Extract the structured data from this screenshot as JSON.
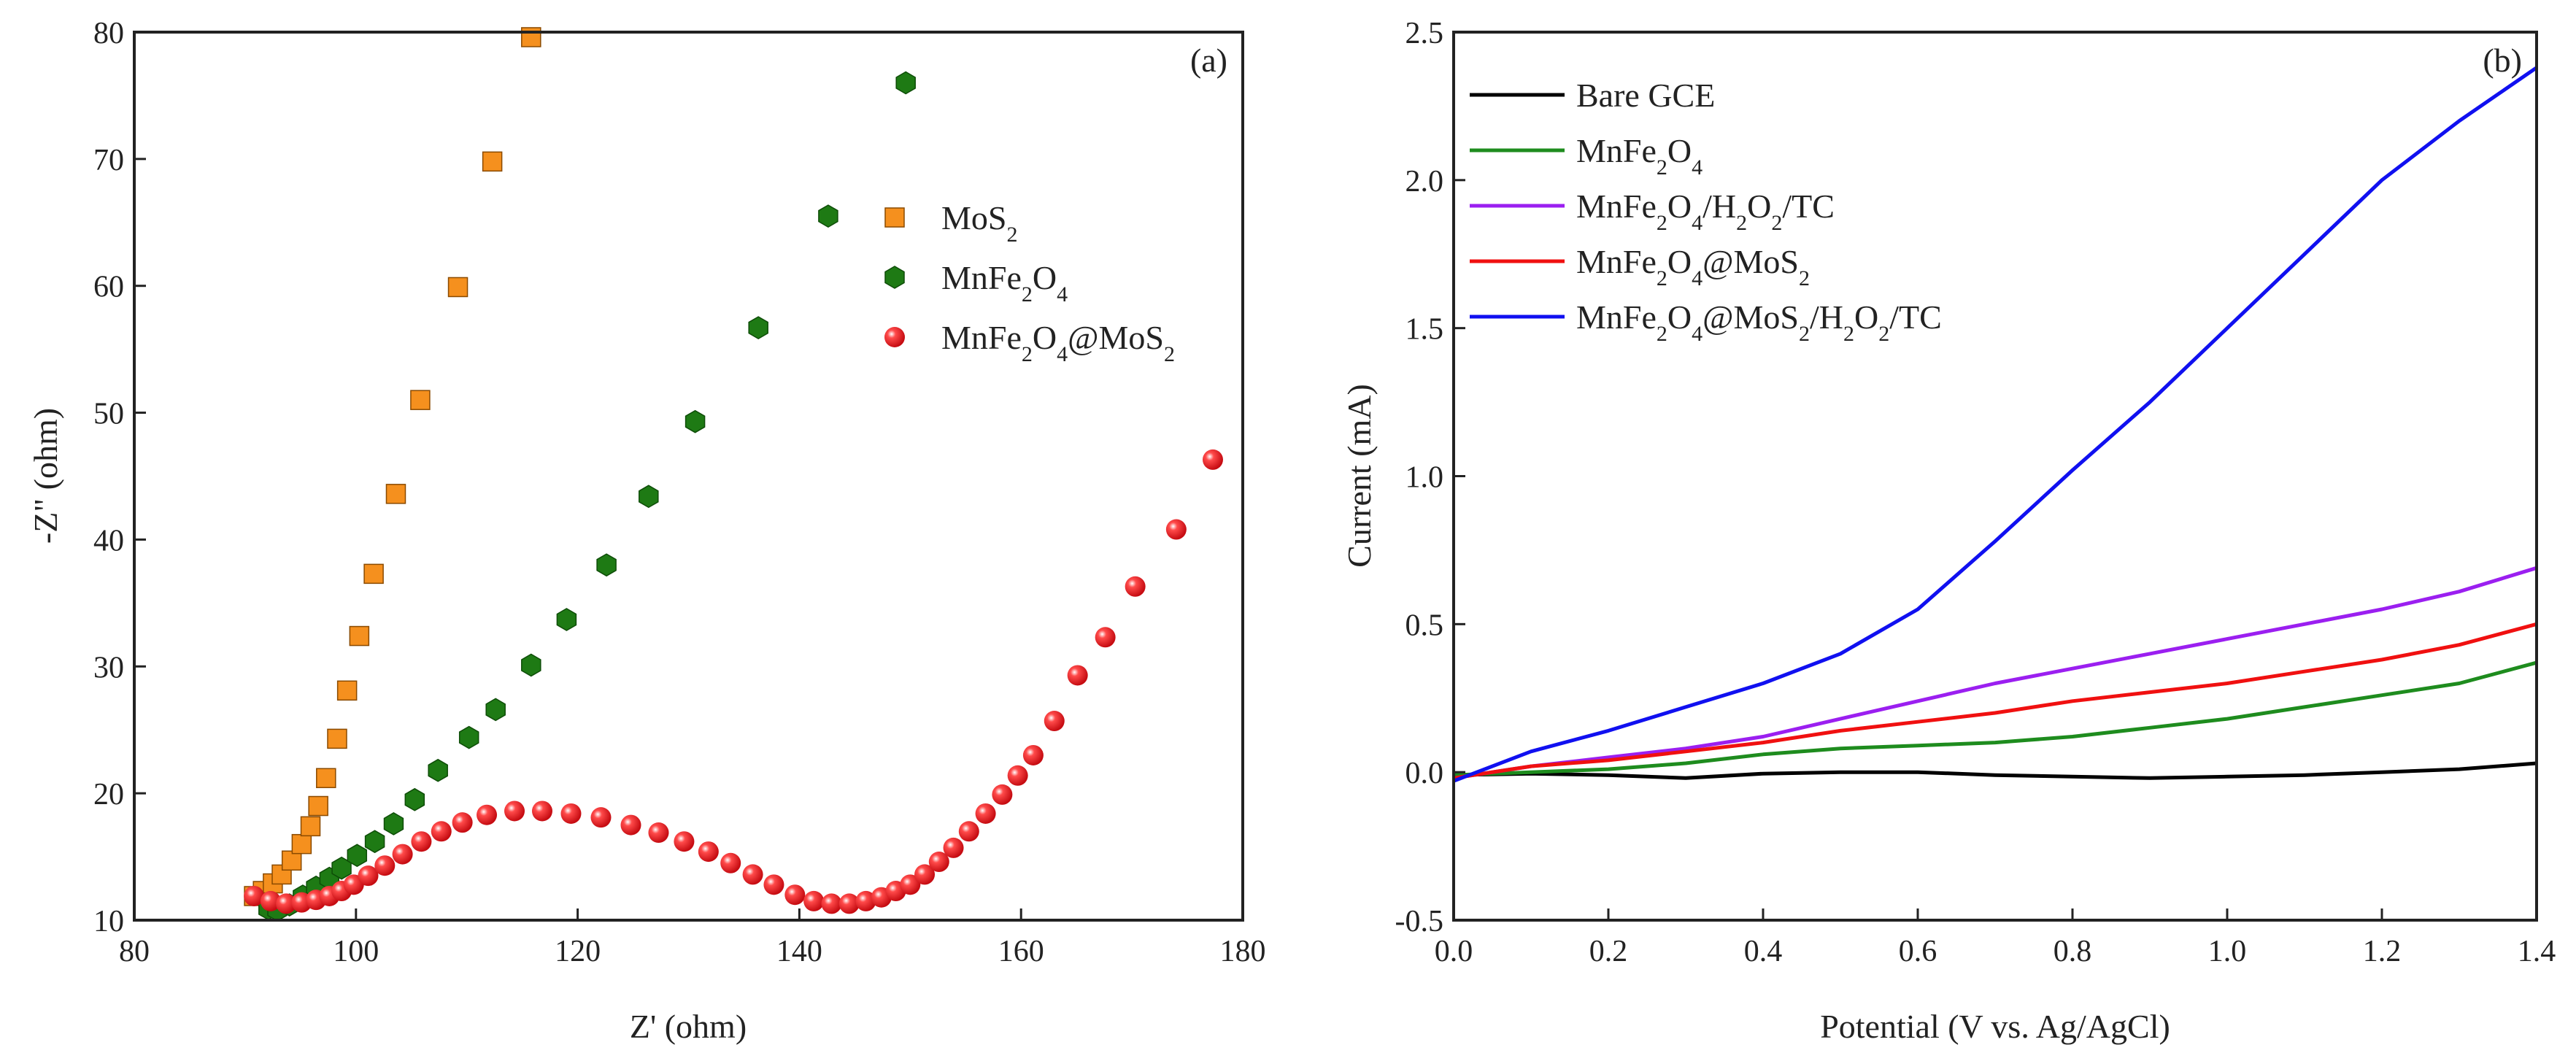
{
  "chart_data": [
    {
      "type": "scatter",
      "panel_label": "(a)",
      "xlabel": "Z' (ohm)",
      "ylabel": "-Z\" (ohm)",
      "xlim": [
        80,
        180
      ],
      "ylim": [
        10,
        80
      ],
      "xticks": [
        80,
        100,
        120,
        140,
        160,
        180
      ],
      "yticks": [
        10,
        20,
        30,
        40,
        50,
        60,
        70,
        80
      ],
      "legend_position": "right-middle",
      "series": [
        {
          "name": "MoS₂",
          "marker": "square",
          "color": "#F5901E",
          "x": [
            90.8,
            91.6,
            92.5,
            93.3,
            94.2,
            95.1,
            95.9,
            96.6,
            97.3,
            98.3,
            99.2,
            100.3,
            101.6,
            103.6,
            105.8,
            109.2,
            112.3,
            115.8
          ],
          "y": [
            11.9,
            12.3,
            12.9,
            13.6,
            14.7,
            16.0,
            17.4,
            19.0,
            21.2,
            24.3,
            28.1,
            32.4,
            37.3,
            43.6,
            51.0,
            59.9,
            69.8,
            79.6
          ]
        },
        {
          "name": "MnFe₂O₄",
          "marker": "hexagon",
          "color": "#1E7A14",
          "x": [
            92.1,
            92.9,
            94.0,
            95.2,
            96.4,
            97.6,
            98.7,
            100.1,
            101.7,
            103.4,
            105.3,
            107.4,
            110.2,
            112.6,
            115.8,
            119.0,
            122.6,
            126.4,
            130.6,
            136.3,
            142.6,
            149.6
          ],
          "y": [
            10.9,
            10.8,
            11.2,
            11.9,
            12.6,
            13.3,
            14.1,
            15.1,
            16.2,
            17.6,
            19.5,
            21.8,
            24.4,
            26.6,
            30.1,
            33.7,
            38.0,
            43.4,
            49.3,
            56.7,
            65.5,
            76.0
          ]
        },
        {
          "name": "MnFe₂O₄@MoS₂",
          "marker": "sphere",
          "color": "#E8141C",
          "x": [
            90.8,
            92.3,
            93.7,
            95.1,
            96.4,
            97.6,
            98.7,
            99.8,
            101.1,
            102.6,
            104.2,
            105.9,
            107.7,
            109.6,
            111.8,
            114.3,
            116.8,
            119.4,
            122.1,
            124.8,
            127.3,
            129.6,
            131.8,
            133.8,
            135.8,
            137.7,
            139.6,
            141.3,
            142.9,
            144.5,
            146.0,
            147.4,
            148.7,
            150.0,
            151.3,
            152.6,
            153.9,
            155.3,
            156.8,
            158.3,
            159.7,
            161.1,
            163.0,
            165.1,
            167.6,
            170.3,
            174.0,
            177.3
          ],
          "y": [
            11.9,
            11.5,
            11.3,
            11.4,
            11.6,
            11.9,
            12.3,
            12.8,
            13.5,
            14.3,
            15.2,
            16.2,
            17.0,
            17.7,
            18.3,
            18.6,
            18.6,
            18.4,
            18.1,
            17.5,
            16.9,
            16.2,
            15.4,
            14.5,
            13.6,
            12.8,
            12.0,
            11.5,
            11.3,
            11.3,
            11.5,
            11.8,
            12.3,
            12.8,
            13.6,
            14.6,
            15.7,
            17.0,
            18.4,
            19.9,
            21.4,
            23.0,
            25.7,
            29.3,
            32.3,
            36.3,
            40.8,
            46.3
          ]
        }
      ]
    },
    {
      "type": "line",
      "panel_label": "(b)",
      "xlabel": "Potential (V vs. Ag/AgCl)",
      "ylabel": "Current (mA)",
      "xlim": [
        0.0,
        1.4
      ],
      "ylim": [
        -0.5,
        2.5
      ],
      "xticks": [
        "0.0",
        "0.2",
        "0.4",
        "0.6",
        "0.8",
        "1.0",
        "1.2",
        "1.4"
      ],
      "yticks": [
        "-0.5",
        "0.0",
        "0.5",
        "1.0",
        "1.5",
        "2.0",
        "2.5"
      ],
      "legend_position": "top-left",
      "x": [
        0.0,
        0.1,
        0.2,
        0.3,
        0.4,
        0.5,
        0.6,
        0.7,
        0.8,
        0.9,
        1.0,
        1.1,
        1.2,
        1.3,
        1.4
      ],
      "series": [
        {
          "name": "Bare GCE",
          "color": "#000000",
          "values": [
            -0.01,
            -0.005,
            -0.01,
            -0.02,
            -0.005,
            0.0,
            0.0,
            -0.01,
            -0.015,
            -0.02,
            -0.015,
            -0.01,
            0.0,
            0.01,
            0.03
          ]
        },
        {
          "name": "MnFe₂O₄",
          "color": "#1E8C1E",
          "values": [
            -0.01,
            0.0,
            0.01,
            0.03,
            0.06,
            0.08,
            0.09,
            0.1,
            0.12,
            0.15,
            0.18,
            0.22,
            0.26,
            0.3,
            0.37
          ]
        },
        {
          "name": "MnFe₂O₄/H₂O₂/TC",
          "color": "#9B1FF0",
          "values": [
            -0.02,
            0.02,
            0.05,
            0.08,
            0.12,
            0.18,
            0.24,
            0.3,
            0.35,
            0.4,
            0.45,
            0.5,
            0.55,
            0.61,
            0.69
          ]
        },
        {
          "name": "MnFe₂O₄@MoS₂",
          "color": "#F01010",
          "values": [
            -0.02,
            0.02,
            0.04,
            0.07,
            0.1,
            0.14,
            0.17,
            0.2,
            0.24,
            0.27,
            0.3,
            0.34,
            0.38,
            0.43,
            0.5
          ]
        },
        {
          "name": "MnFe₂O₄@MoS₂/H₂O₂/TC",
          "color": "#1010F0",
          "values": [
            -0.03,
            0.07,
            0.14,
            0.22,
            0.3,
            0.4,
            0.55,
            0.78,
            1.02,
            1.25,
            1.5,
            1.75,
            2.0,
            2.2,
            2.38
          ]
        }
      ]
    }
  ]
}
